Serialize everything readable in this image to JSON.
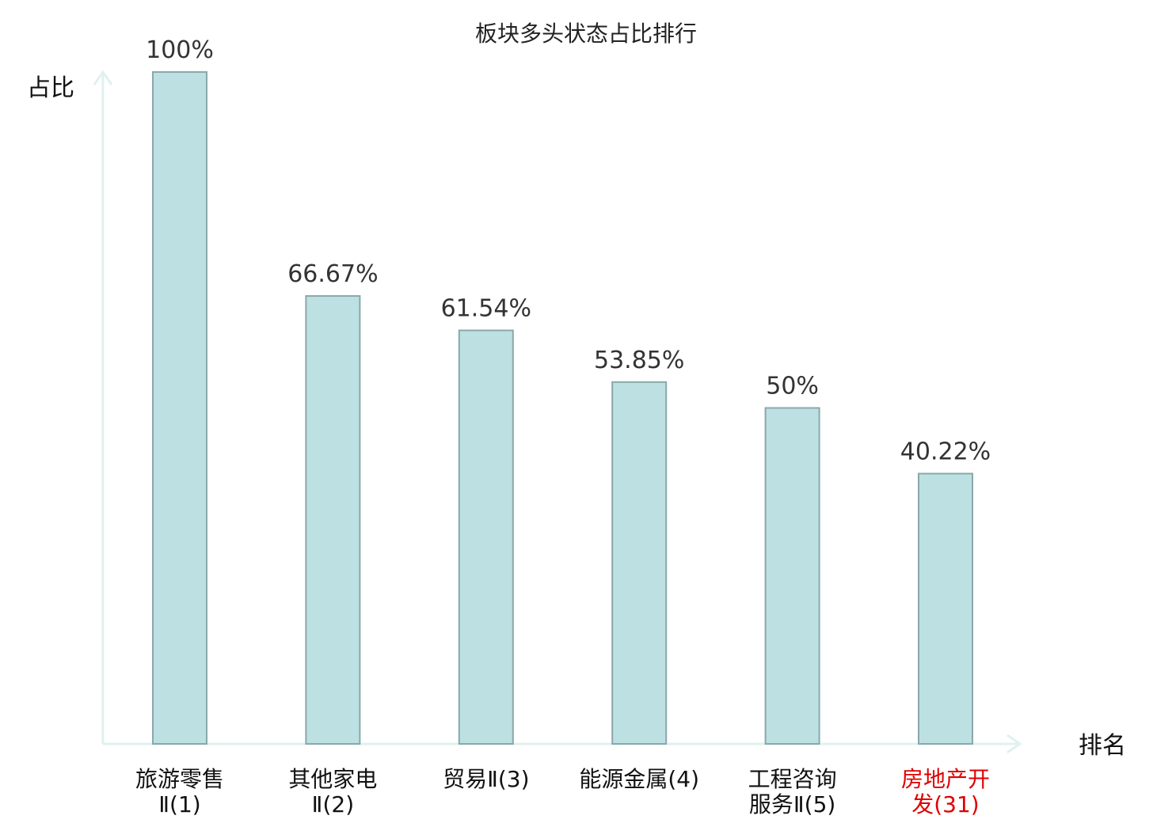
{
  "chart_data": {
    "type": "bar",
    "title": "板块多头状态占比排行",
    "ylabel": "占比",
    "xlabel": "排名",
    "ylim": [
      0,
      100
    ],
    "grid": false,
    "categories": [
      [
        "旅游零售",
        "Ⅱ(1)"
      ],
      [
        "其他家电",
        "Ⅱ(2)"
      ],
      [
        "贸易Ⅱ(3)"
      ],
      [
        "能源金属(4)"
      ],
      [
        "工程咨询",
        "服务Ⅱ(5)"
      ],
      [
        "房地产开",
        "发(31)"
      ]
    ],
    "values": [
      100,
      66.67,
      61.54,
      53.85,
      50,
      40.22
    ],
    "value_labels": [
      "100%",
      "66.67%",
      "61.54%",
      "53.85%",
      "50%",
      "40.22%"
    ],
    "highlight_index": 5,
    "colors": {
      "bar_fill": "#bde0e3",
      "bar_stroke": "#8aa8aa",
      "axis": "#e0f1ef",
      "highlight_text": "#e00000",
      "text": "#111111"
    }
  }
}
